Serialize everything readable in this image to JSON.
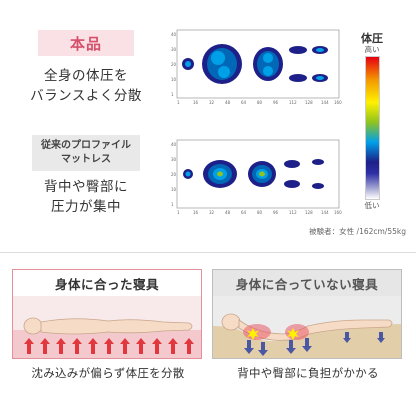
{
  "product": {
    "tag": "本品",
    "desc_line1": "全身の体圧を",
    "desc_line2": "バランスよく分散"
  },
  "conventional": {
    "tag_line1": "従来のプロファイル",
    "tag_line2": "マットレス",
    "desc_line1": "背中や臀部に",
    "desc_line2": "圧力が集中"
  },
  "pressure_map": {
    "x_ticks": [
      "1",
      "16",
      "32",
      "48",
      "64",
      "80",
      "96",
      "112",
      "128",
      "144",
      "160"
    ],
    "y_ticks": [
      "40",
      "30",
      "20",
      "10",
      "1"
    ]
  },
  "legend": {
    "title": "体圧",
    "high": "高い",
    "low": "低い",
    "colors": [
      "#e60012",
      "#f39800",
      "#fff100",
      "#8fc31f",
      "#00a0e9",
      "#1d2088",
      "#ffffff"
    ]
  },
  "subject_note": "被験者：女性 /162cm/55kg",
  "comparison": {
    "good_title": "身体に合った寝具",
    "bad_title": "身体に合っていない寝具",
    "good_caption": "沈み込みが偏らず体圧を分散",
    "bad_caption": "背中や臀部に負担がかかる"
  }
}
